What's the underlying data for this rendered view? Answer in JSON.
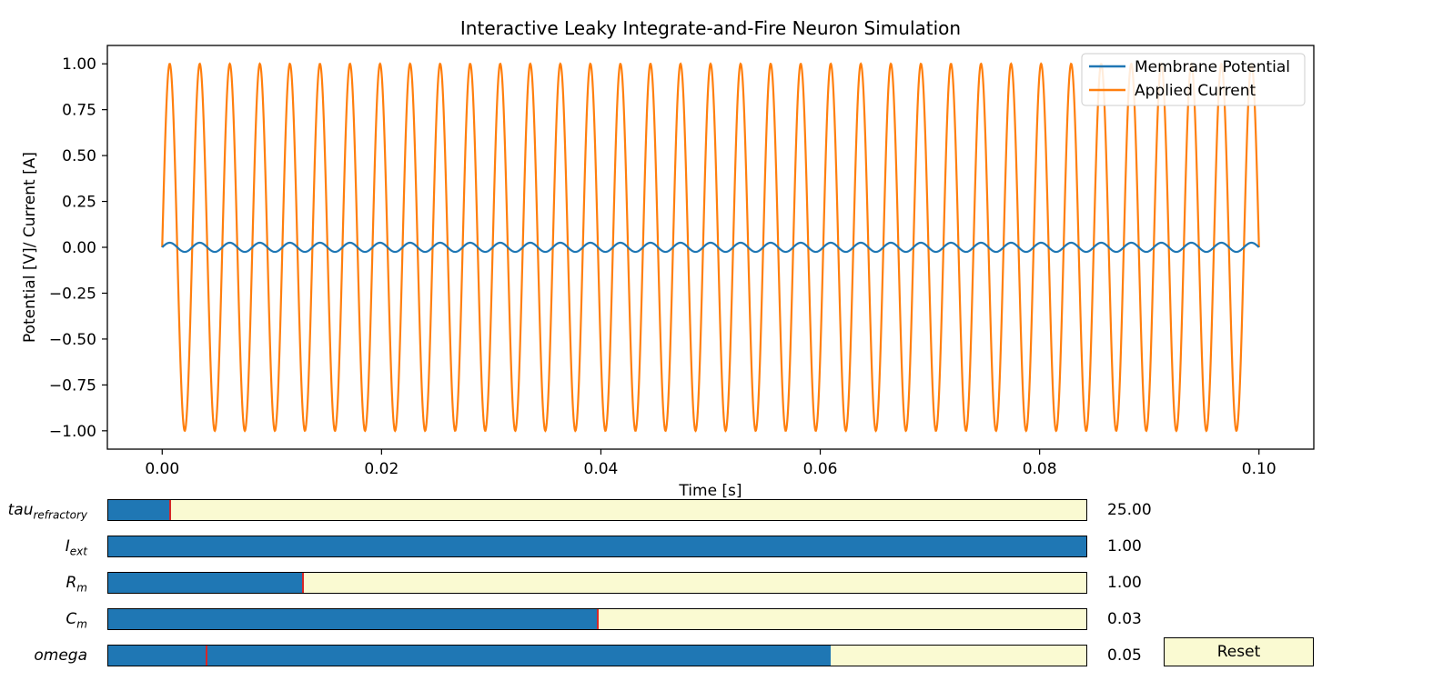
{
  "chart_data": {
    "type": "line",
    "title": "Interactive Leaky Integrate-and-Fire Neuron Simulation",
    "xlabel": "Time [s]",
    "ylabel": "Potential [V]/ Current [A]",
    "xlim": [
      -0.005,
      0.105
    ],
    "ylim": [
      -1.1,
      1.1
    ],
    "xticks": [
      "0.00",
      "0.02",
      "0.04",
      "0.06",
      "0.08",
      "0.10"
    ],
    "yticks": [
      "1.00",
      "0.75",
      "0.50",
      "0.25",
      "0.00",
      "−0.25",
      "−0.50",
      "−0.75",
      "−1.00"
    ],
    "grid": false,
    "legend_position": "top-right",
    "series": [
      {
        "name": "Membrane Potential",
        "color": "#1f77b4",
        "description_points": "Small sinusoid oscillating about 0 between roughly -0.02 and 0.03 with period ~0.0027 s, from t=0.00 to t=0.10 s",
        "amplitude": 0.025,
        "frequency_hz": 365
      },
      {
        "name": "Applied Current",
        "color": "#ff7f0e",
        "description_points": "Sinusoid sin(2*pi*f*t) with amplitude 1.00 and period ~0.0027 s, from t=0.00 to t=0.10 s, ending near -0.25",
        "amplitude": 1.0,
        "frequency_hz": 365
      }
    ]
  },
  "sliders": [
    {
      "name": "tau",
      "label_main": "tau",
      "label_sub": "refractory",
      "value": "25.00",
      "fill": 0.063,
      "init": 0.063
    },
    {
      "name": "iext",
      "label_main": "I",
      "label_sub": "ext",
      "value": "1.00",
      "fill": 1.0,
      "init": 1.0
    },
    {
      "name": "rm",
      "label_main": "R",
      "label_sub": "m",
      "value": "1.00",
      "fill": 0.199,
      "init": 0.199
    },
    {
      "name": "cm",
      "label_main": "C",
      "label_sub": "m",
      "value": "0.03",
      "fill": 0.5,
      "init": 0.5
    },
    {
      "name": "omega",
      "label_main": "omega",
      "label_sub": "",
      "value": "0.05",
      "fill": 0.739,
      "init": 0.1
    }
  ],
  "reset_label": "Reset"
}
